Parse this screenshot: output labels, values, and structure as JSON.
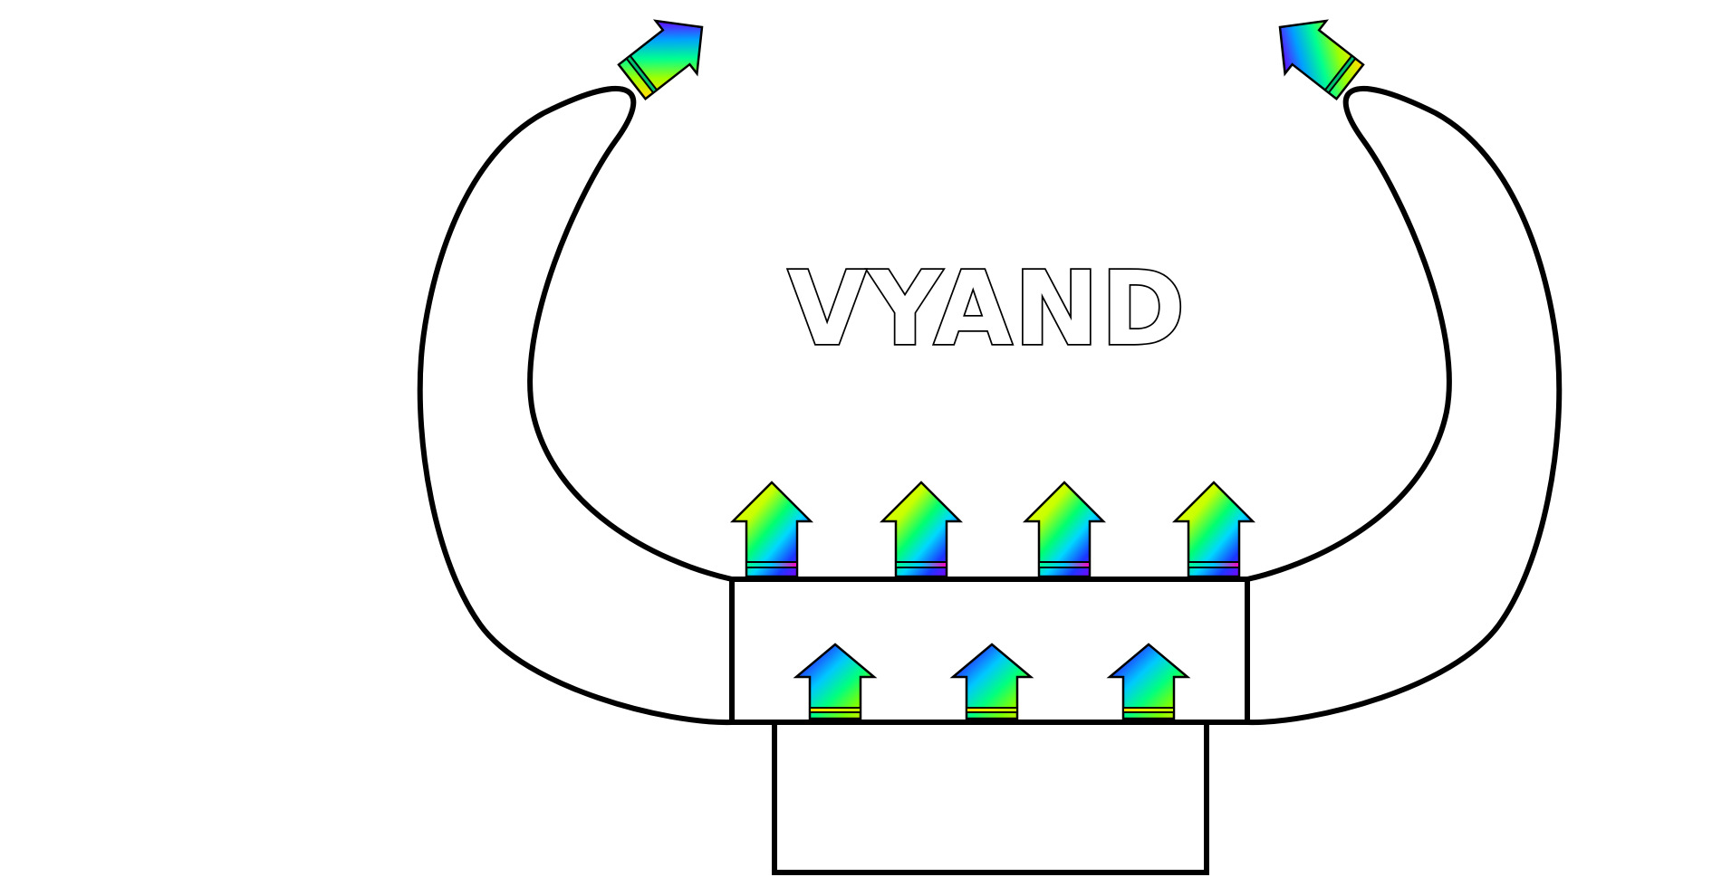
{
  "diagram": {
    "title": "VYAND"
  },
  "colors": {
    "outline": "#000000",
    "background": "#ffffff",
    "rainbow": [
      "#ffff00",
      "#a0ff00",
      "#00ff60",
      "#00c8ff",
      "#2040ff",
      "#a000ff",
      "#ff00c0"
    ]
  },
  "icons": {
    "upper_arrow": "rainbow-up-arrow-icon",
    "lower_arrow": "rainbow-up-arrow-icon",
    "horn_tip_arrow": "rainbow-diagonal-arrow-icon"
  },
  "counts": {
    "upper_arrows": 4,
    "lower_arrows": 3,
    "horn_tip_arrows": 2
  }
}
